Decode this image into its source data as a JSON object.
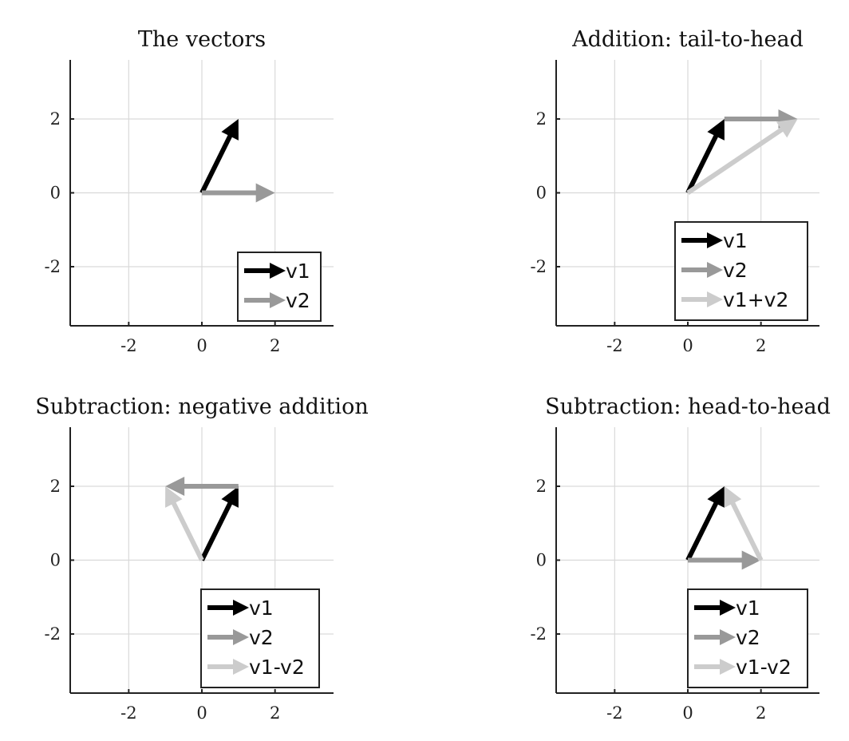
{
  "chart_data": [
    {
      "type": "vector",
      "title": "The vectors",
      "xlim": [
        -3.6,
        3.6
      ],
      "ylim": [
        -3.6,
        3.6
      ],
      "xticks": [
        -2,
        0,
        2
      ],
      "yticks": [
        -2,
        0,
        2
      ],
      "xtick_labels": [
        "-2",
        "0",
        "2"
      ],
      "ytick_labels": [
        "-2",
        "0",
        "2"
      ],
      "grid": true,
      "legend_position": "lower right",
      "series": [
        {
          "name": "v1",
          "from": [
            0,
            0
          ],
          "to": [
            1,
            2
          ],
          "color": "#000000"
        },
        {
          "name": "v2",
          "from": [
            0,
            0
          ],
          "to": [
            2,
            0
          ],
          "color": "#999999"
        }
      ]
    },
    {
      "type": "vector",
      "title": "Addition: tail-to-head",
      "xlim": [
        -3.6,
        3.6
      ],
      "ylim": [
        -3.6,
        3.6
      ],
      "xticks": [
        -2,
        0,
        2
      ],
      "yticks": [
        -2,
        0,
        2
      ],
      "xtick_labels": [
        "-2",
        "0",
        "2"
      ],
      "ytick_labels": [
        "-2",
        "0",
        "2"
      ],
      "grid": true,
      "legend_position": "lower right",
      "series": [
        {
          "name": "v1",
          "from": [
            0,
            0
          ],
          "to": [
            1,
            2
          ],
          "color": "#000000"
        },
        {
          "name": "v2",
          "from": [
            1,
            2
          ],
          "to": [
            3,
            2
          ],
          "color": "#999999"
        },
        {
          "name": "v1+v2",
          "from": [
            0,
            0
          ],
          "to": [
            3,
            2
          ],
          "color": "#cccccc"
        }
      ]
    },
    {
      "type": "vector",
      "title": "Subtraction: negative addition",
      "xlim": [
        -3.6,
        3.6
      ],
      "ylim": [
        -3.6,
        3.6
      ],
      "xticks": [
        -2,
        0,
        2
      ],
      "yticks": [
        -2,
        0,
        2
      ],
      "xtick_labels": [
        "-2",
        "0",
        "2"
      ],
      "ytick_labels": [
        "-2",
        "0",
        "2"
      ],
      "grid": true,
      "legend_position": "lower right",
      "series": [
        {
          "name": "v1",
          "from": [
            0,
            0
          ],
          "to": [
            1,
            2
          ],
          "color": "#000000"
        },
        {
          "name": "v2",
          "from": [
            1,
            2
          ],
          "to": [
            -1,
            2
          ],
          "color": "#999999"
        },
        {
          "name": "v1-v2",
          "from": [
            0,
            0
          ],
          "to": [
            -1,
            2
          ],
          "color": "#cccccc"
        }
      ]
    },
    {
      "type": "vector",
      "title": "Subtraction: head-to-head",
      "xlim": [
        -3.6,
        3.6
      ],
      "ylim": [
        -3.6,
        3.6
      ],
      "xticks": [
        -2,
        0,
        2
      ],
      "yticks": [
        -2,
        0,
        2
      ],
      "xtick_labels": [
        "-2",
        "0",
        "2"
      ],
      "ytick_labels": [
        "-2",
        "0",
        "2"
      ],
      "grid": true,
      "legend_position": "lower right",
      "series": [
        {
          "name": "v1",
          "from": [
            0,
            0
          ],
          "to": [
            1,
            2
          ],
          "color": "#000000"
        },
        {
          "name": "v2",
          "from": [
            0,
            0
          ],
          "to": [
            2,
            0
          ],
          "color": "#999999"
        },
        {
          "name": "v1-v2",
          "from": [
            2,
            0
          ],
          "to": [
            1,
            2
          ],
          "color": "#cccccc"
        }
      ]
    }
  ]
}
